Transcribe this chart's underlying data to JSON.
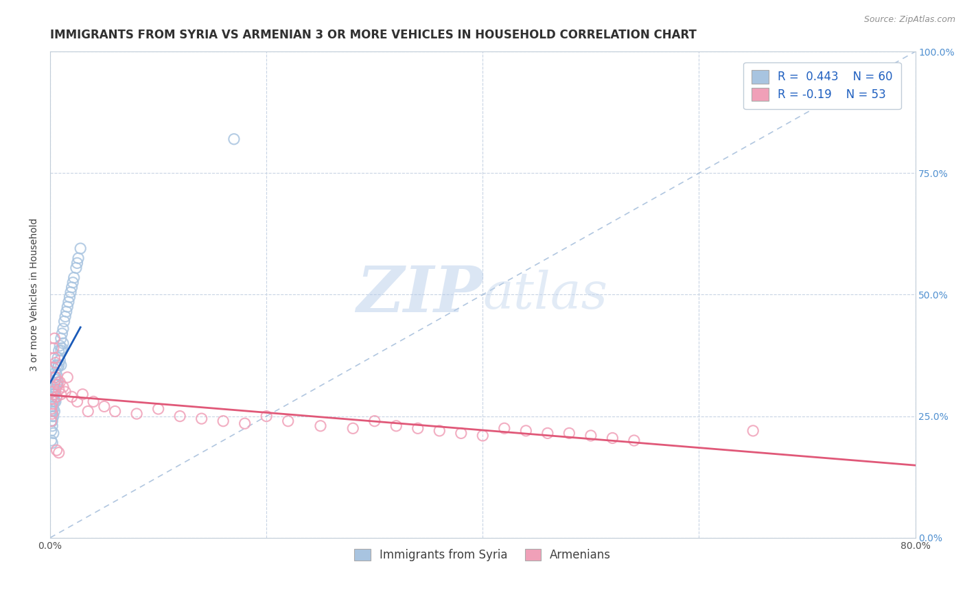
{
  "title": "IMMIGRANTS FROM SYRIA VS ARMENIAN 3 OR MORE VEHICLES IN HOUSEHOLD CORRELATION CHART",
  "source_text": "Source: ZipAtlas.com",
  "ylabel": "3 or more Vehicles in Household",
  "r_syria": 0.443,
  "n_syria": 60,
  "r_armenian": -0.19,
  "n_armenian": 53,
  "xlim": [
    0.0,
    0.8
  ],
  "ylim": [
    0.0,
    1.0
  ],
  "x_ticks": [
    0.0,
    0.2,
    0.4,
    0.6,
    0.8
  ],
  "x_tick_labels": [
    "0.0%",
    "",
    "",
    "",
    "80.0%"
  ],
  "y_ticks_right": [
    0.0,
    0.25,
    0.5,
    0.75,
    1.0
  ],
  "y_tick_labels_right": [
    "0.0%",
    "25.0%",
    "50.0%",
    "75.0%",
    "100.0%"
  ],
  "color_syria": "#a8c4e0",
  "color_armenian": "#f0a0b8",
  "color_trendline_syria": "#1a5ab8",
  "color_trendline_armenian": "#e05878",
  "color_diagonal": "#9db8d8",
  "watermark_zip": "ZIP",
  "watermark_atlas": "atlas",
  "watermark_color_zip": "#b8cce4",
  "watermark_color_atlas": "#c8d8ec",
  "legend_label_syria": "Immigrants from Syria",
  "legend_label_armenian": "Armenians",
  "syria_x": [
    0.001,
    0.001,
    0.001,
    0.001,
    0.001,
    0.002,
    0.002,
    0.002,
    0.002,
    0.002,
    0.002,
    0.002,
    0.003,
    0.003,
    0.003,
    0.003,
    0.003,
    0.003,
    0.004,
    0.004,
    0.004,
    0.004,
    0.004,
    0.005,
    0.005,
    0.005,
    0.005,
    0.006,
    0.006,
    0.006,
    0.006,
    0.007,
    0.007,
    0.007,
    0.008,
    0.008,
    0.009,
    0.009,
    0.01,
    0.01,
    0.01,
    0.011,
    0.011,
    0.012,
    0.012,
    0.013,
    0.014,
    0.015,
    0.016,
    0.017,
    0.018,
    0.019,
    0.02,
    0.021,
    0.022,
    0.024,
    0.025,
    0.026,
    0.028,
    0.17
  ],
  "syria_y": [
    0.26,
    0.24,
    0.27,
    0.22,
    0.2,
    0.29,
    0.27,
    0.26,
    0.25,
    0.24,
    0.23,
    0.195,
    0.31,
    0.295,
    0.28,
    0.265,
    0.25,
    0.215,
    0.33,
    0.315,
    0.295,
    0.28,
    0.26,
    0.34,
    0.325,
    0.305,
    0.28,
    0.355,
    0.335,
    0.315,
    0.29,
    0.37,
    0.35,
    0.32,
    0.385,
    0.355,
    0.395,
    0.365,
    0.41,
    0.385,
    0.355,
    0.42,
    0.39,
    0.43,
    0.4,
    0.445,
    0.455,
    0.465,
    0.475,
    0.485,
    0.495,
    0.505,
    0.515,
    0.525,
    0.535,
    0.555,
    0.565,
    0.575,
    0.595,
    0.82
  ],
  "armenian_x": [
    0.001,
    0.001,
    0.001,
    0.002,
    0.002,
    0.002,
    0.003,
    0.003,
    0.004,
    0.004,
    0.005,
    0.005,
    0.006,
    0.007,
    0.008,
    0.009,
    0.01,
    0.012,
    0.014,
    0.016,
    0.02,
    0.025,
    0.03,
    0.035,
    0.04,
    0.05,
    0.06,
    0.08,
    0.1,
    0.12,
    0.14,
    0.16,
    0.18,
    0.2,
    0.22,
    0.25,
    0.28,
    0.3,
    0.32,
    0.34,
    0.36,
    0.38,
    0.4,
    0.42,
    0.44,
    0.46,
    0.48,
    0.5,
    0.52,
    0.54,
    0.65,
    0.006,
    0.008
  ],
  "armenian_y": [
    0.285,
    0.265,
    0.24,
    0.3,
    0.275,
    0.255,
    0.39,
    0.35,
    0.41,
    0.37,
    0.36,
    0.33,
    0.29,
    0.315,
    0.305,
    0.32,
    0.295,
    0.31,
    0.3,
    0.33,
    0.29,
    0.28,
    0.295,
    0.26,
    0.28,
    0.27,
    0.26,
    0.255,
    0.265,
    0.25,
    0.245,
    0.24,
    0.235,
    0.25,
    0.24,
    0.23,
    0.225,
    0.24,
    0.23,
    0.225,
    0.22,
    0.215,
    0.21,
    0.225,
    0.22,
    0.215,
    0.215,
    0.21,
    0.205,
    0.2,
    0.22,
    0.18,
    0.175
  ],
  "background_color": "#ffffff",
  "grid_color": "#c8d4e4",
  "title_fontsize": 12,
  "axis_label_fontsize": 10,
  "tick_fontsize": 10,
  "legend_fontsize": 12
}
